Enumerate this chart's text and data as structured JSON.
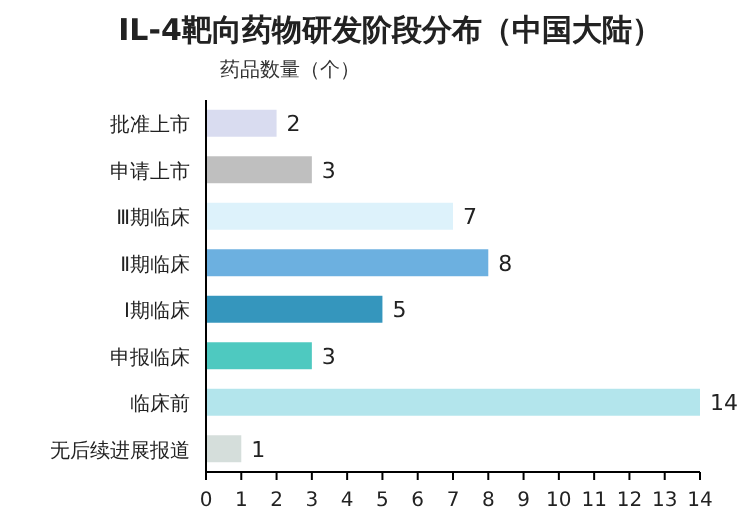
{
  "chart_data": {
    "type": "bar",
    "orientation": "horizontal",
    "title": "IL-4靶向药物研发阶段分布（中国大陆）",
    "xlabel": "药品数量（个）",
    "categories": [
      "批准上市",
      "申请上市",
      "Ⅲ期临床",
      "Ⅱ期临床",
      "Ⅰ期临床",
      "申报临床",
      "临床前",
      "无后续进展报道"
    ],
    "values": [
      2,
      3,
      7,
      8,
      5,
      3,
      14,
      1
    ],
    "colors": [
      "#d9dcf0",
      "#bfbfbf",
      "#ddf2fb",
      "#6cb0e0",
      "#3596bd",
      "#4ec9c0",
      "#b3e5ec",
      "#d5dedb"
    ],
    "xlim": [
      0,
      14
    ],
    "xticks": [
      0,
      1,
      2,
      3,
      4,
      5,
      6,
      7,
      8,
      9,
      10,
      11,
      12,
      13,
      14
    ],
    "data_labels": true,
    "grid": false
  }
}
